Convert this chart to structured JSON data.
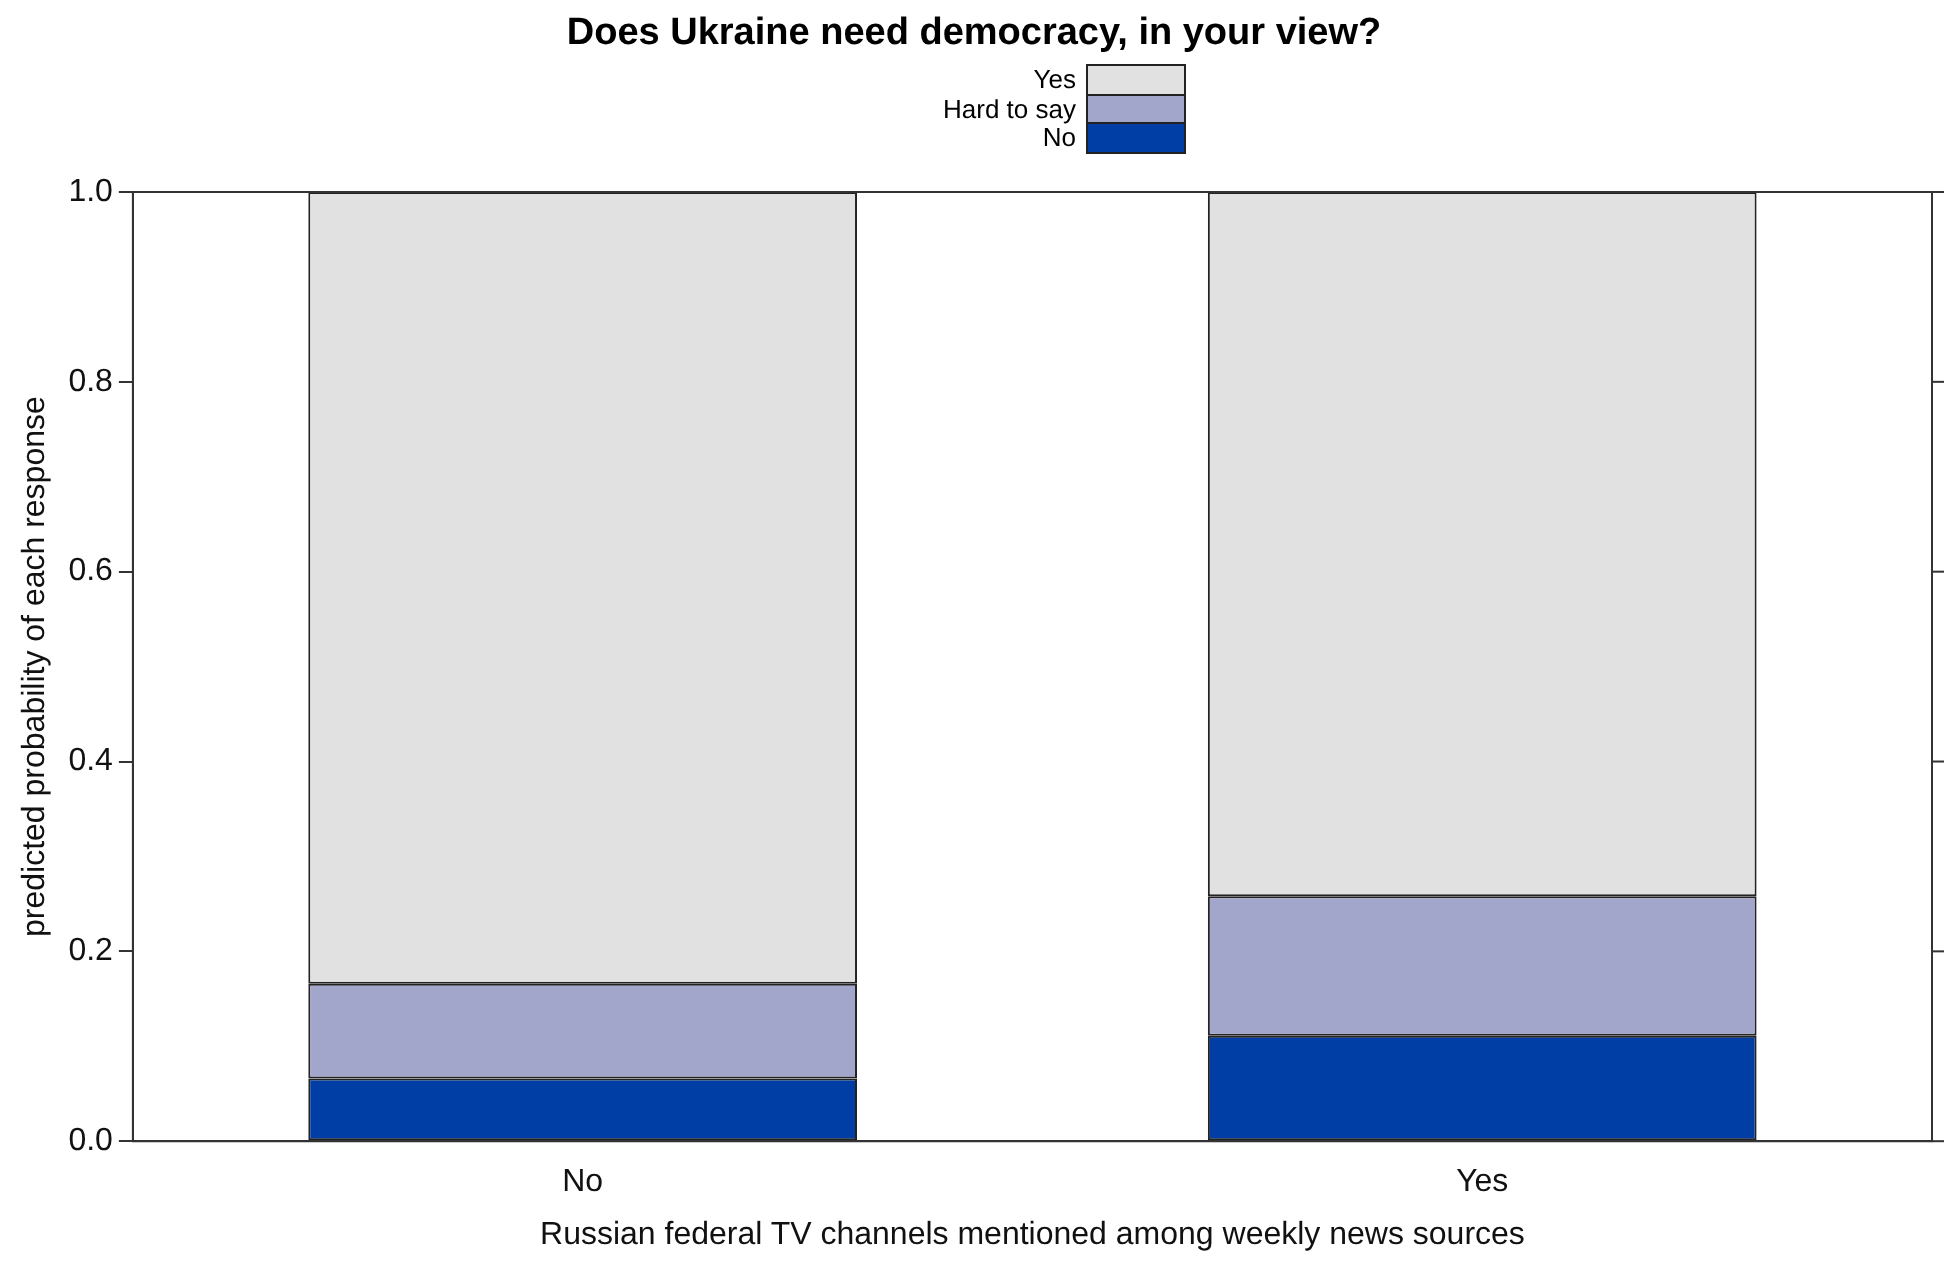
{
  "chart_data": {
    "type": "bar",
    "stacked": true,
    "title": "Does Ukraine need democracy, in your view?",
    "xlabel": "Russian federal TV channels mentioned among weekly news sources",
    "ylabel": "predicted probability of each response",
    "categories": [
      "No",
      "Yes"
    ],
    "series": [
      {
        "name": "No",
        "color": "#003da5",
        "values": [
          0.066,
          0.111
        ]
      },
      {
        "name": "Hard to say",
        "color": "#a3a6cb",
        "values": [
          0.1,
          0.147
        ]
      },
      {
        "name": "Yes",
        "color": "#e1e1e1",
        "values": [
          0.834,
          0.742
        ]
      }
    ],
    "ylim": [
      0,
      1
    ],
    "yticks": [
      {
        "value": 0,
        "label": "0.0"
      },
      {
        "value": 0.2,
        "label": "0.2"
      },
      {
        "value": 0.4,
        "label": "0.4"
      },
      {
        "value": 0.6,
        "label": "0.6"
      },
      {
        "value": 0.8,
        "label": "0.8"
      },
      {
        "value": 1,
        "label": "1.0"
      }
    ],
    "grid": false,
    "legend": "top"
  }
}
